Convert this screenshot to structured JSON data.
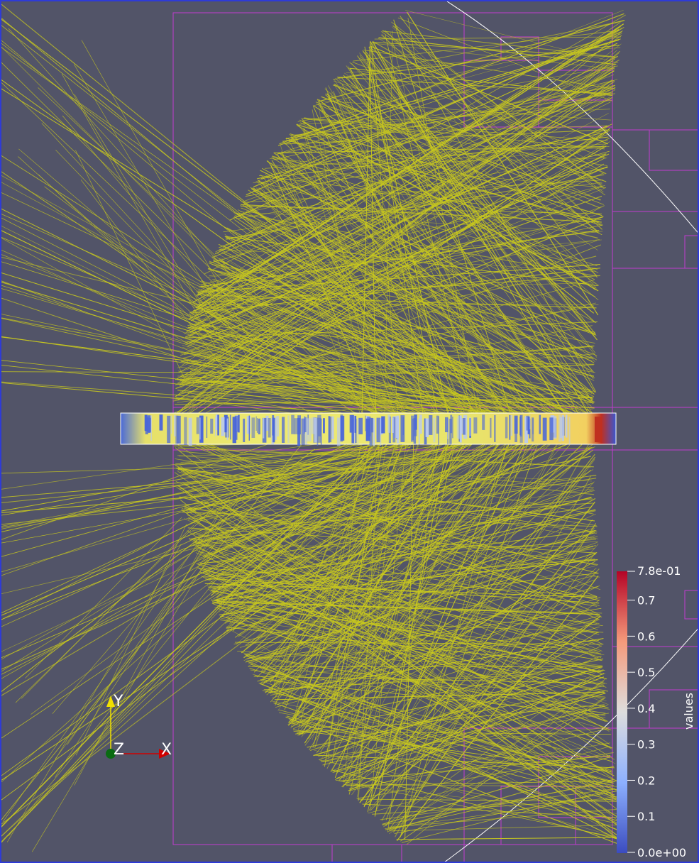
{
  "colorbar": {
    "title": "values",
    "max_label": "7.8e-01",
    "min_label": "0.0e+00",
    "ticks": [
      "0.7",
      "0.6",
      "0.5",
      "0.4",
      "0.3",
      "0.2",
      "0.1"
    ],
    "tick_values": [
      0.7,
      0.6,
      0.5,
      0.4,
      0.3,
      0.2,
      0.1
    ],
    "range": [
      0,
      0.78
    ],
    "colormap": [
      "#3b4cc0",
      "#8db0fe",
      "#dddddd",
      "#f49a7b",
      "#b40426"
    ]
  },
  "orientation_axes": {
    "x_label": "X",
    "y_label": "Y",
    "z_label": "Z",
    "x_color": "#d00000",
    "y_color": "#f0e000",
    "z_color": "#0a6b12"
  },
  "colors": {
    "background": "#525468",
    "rays": "#c8c81e",
    "grid": "#c13bd0",
    "border": "#2e3bd6",
    "outline": "#ffffff"
  }
}
